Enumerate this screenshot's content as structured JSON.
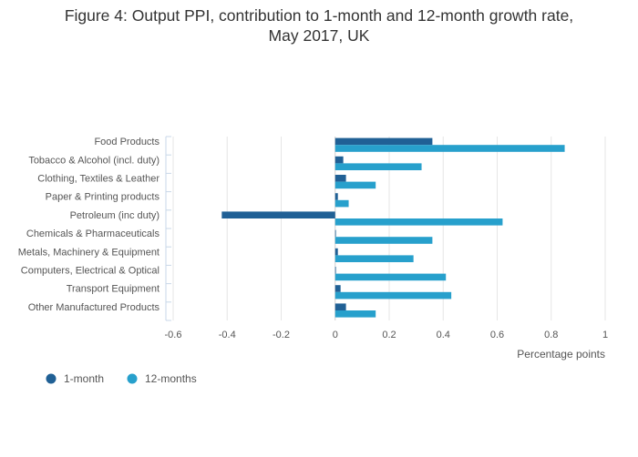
{
  "chart_data": {
    "type": "bar",
    "orientation": "horizontal",
    "title_lines": [
      "Figure 4: Output PPI, contribution to 1-month and 12-month growth rate,",
      "May 2017, UK"
    ],
    "xlabel": "Percentage points",
    "ylabel": "",
    "xlim": [
      -0.6,
      1.0
    ],
    "xticks": [
      -0.6,
      -0.4,
      -0.2,
      0,
      0.2,
      0.4,
      0.6,
      0.8,
      1
    ],
    "xtick_labels": [
      "-0.6",
      "-0.4",
      "-0.2",
      "0",
      "0.2",
      "0.4",
      "0.6",
      "0.8",
      "1"
    ],
    "grid": true,
    "legend_position": "bottom-left",
    "categories": [
      "Food Products",
      "Tobacco & Alcohol (incl. duty)",
      "Clothing, Textiles & Leather",
      "Paper & Printing products",
      "Petroleum (inc duty)",
      "Chemicals & Pharmaceuticals",
      "Metals, Machinery & Equipment",
      "Computers, Electrical & Optical",
      "Transport Equipment",
      "Other Manufactured Products"
    ],
    "series": [
      {
        "name": "1-month",
        "color": "#206095",
        "values": [
          0.36,
          0.03,
          0.04,
          0.01,
          -0.42,
          0.0,
          0.01,
          0.0,
          0.02,
          0.04
        ]
      },
      {
        "name": "12-months",
        "color": "#27a0cc",
        "values": [
          0.85,
          0.32,
          0.15,
          0.05,
          0.62,
          0.36,
          0.29,
          0.41,
          0.43,
          0.15
        ]
      }
    ]
  }
}
